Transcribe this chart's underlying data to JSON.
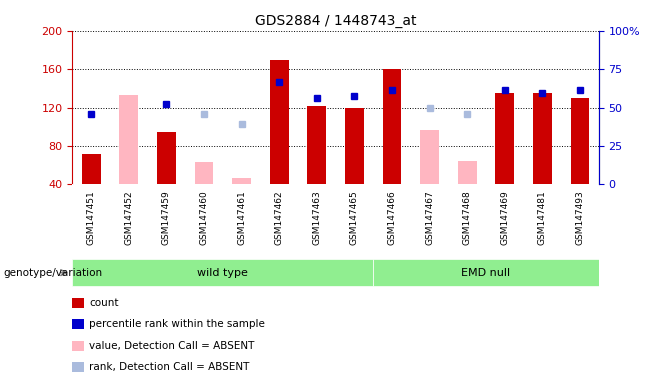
{
  "title": "GDS2884 / 1448743_at",
  "samples": [
    "GSM147451",
    "GSM147452",
    "GSM147459",
    "GSM147460",
    "GSM147461",
    "GSM147462",
    "GSM147463",
    "GSM147465",
    "GSM147466",
    "GSM147467",
    "GSM147468",
    "GSM147469",
    "GSM147481",
    "GSM147493"
  ],
  "wt_indices": [
    0,
    1,
    2,
    3,
    4,
    5,
    6,
    7
  ],
  "emd_indices": [
    8,
    9,
    10,
    11,
    12,
    13
  ],
  "count": [
    72,
    null,
    95,
    null,
    null,
    170,
    122,
    120,
    160,
    null,
    null,
    135,
    135,
    130
  ],
  "percentile_rank": [
    113,
    null,
    124,
    null,
    null,
    147,
    130,
    132,
    138,
    null,
    null,
    138,
    135,
    138
  ],
  "value_absent": [
    null,
    133,
    null,
    63,
    47,
    null,
    null,
    null,
    null,
    97,
    64,
    null,
    null,
    null
  ],
  "rank_absent": [
    null,
    null,
    null,
    113,
    103,
    null,
    null,
    null,
    null,
    120,
    113,
    null,
    null,
    null
  ],
  "ylim_left": [
    40,
    200
  ],
  "ylim_right": [
    0,
    100
  ],
  "yticks_left": [
    40,
    80,
    120,
    160,
    200
  ],
  "yticks_right": [
    0,
    25,
    50,
    75,
    100
  ],
  "ytick_labels_right": [
    "0",
    "25",
    "50",
    "75",
    "100%"
  ],
  "bar_bottom": 40,
  "count_color": "#CC0000",
  "percentile_color": "#0000CC",
  "value_absent_color": "#FFB6C1",
  "rank_absent_color": "#AABBDD",
  "group_green": "#90EE90",
  "tick_bg_color": "#C8C8C8",
  "background_color": "#FFFFFF",
  "plot_bg_color": "#FFFFFF",
  "genotype_label": "genotype/variation",
  "bar_width": 0.5,
  "legend_items": [
    {
      "label": "count",
      "color": "#CC0000"
    },
    {
      "label": "percentile rank within the sample",
      "color": "#0000CC"
    },
    {
      "label": "value, Detection Call = ABSENT",
      "color": "#FFB6C1"
    },
    {
      "label": "rank, Detection Call = ABSENT",
      "color": "#AABBDD"
    }
  ]
}
